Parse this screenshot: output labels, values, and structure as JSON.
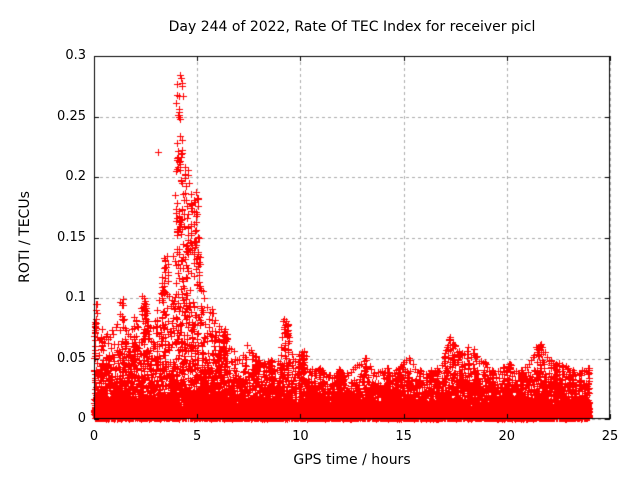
{
  "chart_data": {
    "type": "scatter",
    "title": "Day 244 of 2022, Rate Of TEC Index for receiver picl",
    "xlabel": "GPS time / hours",
    "ylabel": "ROTI / TECUs",
    "xlim": [
      0,
      25
    ],
    "ylim": [
      0,
      0.3
    ],
    "xticks": [
      0,
      5,
      10,
      15,
      20,
      25
    ],
    "xtick_labels": [
      "0",
      "5",
      "10",
      "15",
      "20",
      "25"
    ],
    "yticks": [
      0,
      0.05,
      0.1,
      0.15,
      0.2,
      0.25,
      0.3
    ],
    "ytick_labels": [
      "0",
      "0.05",
      "0.1",
      "0.15",
      "0.2",
      "0.25",
      "0.3"
    ],
    "grid": "dashed-at-major-ticks",
    "legend": "none",
    "marker": "plus",
    "colors": {
      "points": "#ff0000",
      "grid": "#ababab",
      "axis": "#000000",
      "background": "#ffffff",
      "text": "#000000"
    },
    "data_hours_range": [
      0,
      24
    ],
    "baseline_band": [
      0,
      0.02
    ],
    "envelope_max": [
      [
        0.0,
        0.095
      ],
      [
        0.2,
        0.072
      ],
      [
        0.4,
        0.075
      ],
      [
        0.6,
        0.07
      ],
      [
        0.8,
        0.08
      ],
      [
        1.0,
        0.078
      ],
      [
        1.3,
        0.101
      ],
      [
        1.5,
        0.085
      ],
      [
        1.7,
        0.075
      ],
      [
        1.9,
        0.086
      ],
      [
        2.1,
        0.08
      ],
      [
        2.35,
        0.104
      ],
      [
        2.6,
        0.088
      ],
      [
        2.8,
        0.076
      ],
      [
        3.0,
        0.09
      ],
      [
        3.2,
        0.11
      ],
      [
        3.45,
        0.135
      ],
      [
        3.6,
        0.128
      ],
      [
        3.75,
        0.1
      ],
      [
        3.9,
        0.165
      ],
      [
        4.05,
        0.283
      ],
      [
        4.2,
        0.27
      ],
      [
        4.35,
        0.19
      ],
      [
        4.45,
        0.213
      ],
      [
        4.6,
        0.165
      ],
      [
        4.8,
        0.19
      ],
      [
        4.95,
        0.185
      ],
      [
        5.1,
        0.135
      ],
      [
        5.3,
        0.108
      ],
      [
        5.5,
        0.097
      ],
      [
        5.7,
        0.093
      ],
      [
        5.9,
        0.082
      ],
      [
        6.1,
        0.076
      ],
      [
        6.35,
        0.076
      ],
      [
        6.6,
        0.062
      ],
      [
        6.9,
        0.056
      ],
      [
        7.15,
        0.05
      ],
      [
        7.45,
        0.065
      ],
      [
        7.7,
        0.056
      ],
      [
        8.0,
        0.05
      ],
      [
        8.3,
        0.046
      ],
      [
        8.6,
        0.05
      ],
      [
        8.9,
        0.046
      ],
      [
        9.1,
        0.07
      ],
      [
        9.3,
        0.083
      ],
      [
        9.55,
        0.06
      ],
      [
        9.8,
        0.052
      ],
      [
        10.1,
        0.06
      ],
      [
        10.4,
        0.046
      ],
      [
        10.7,
        0.04
      ],
      [
        11.0,
        0.043
      ],
      [
        11.4,
        0.038
      ],
      [
        11.8,
        0.042
      ],
      [
        12.2,
        0.04
      ],
      [
        12.6,
        0.044
      ],
      [
        13.0,
        0.054
      ],
      [
        13.3,
        0.048
      ],
      [
        13.7,
        0.04
      ],
      [
        14.1,
        0.043
      ],
      [
        14.5,
        0.04
      ],
      [
        14.9,
        0.046
      ],
      [
        15.2,
        0.053
      ],
      [
        15.6,
        0.045
      ],
      [
        16.0,
        0.038
      ],
      [
        16.4,
        0.041
      ],
      [
        16.7,
        0.044
      ],
      [
        17.0,
        0.056
      ],
      [
        17.2,
        0.068
      ],
      [
        17.5,
        0.061
      ],
      [
        17.8,
        0.056
      ],
      [
        18.1,
        0.061
      ],
      [
        18.4,
        0.059
      ],
      [
        18.7,
        0.051
      ],
      [
        19.0,
        0.046
      ],
      [
        19.4,
        0.04
      ],
      [
        19.8,
        0.043
      ],
      [
        20.2,
        0.046
      ],
      [
        20.6,
        0.041
      ],
      [
        21.0,
        0.046
      ],
      [
        21.4,
        0.06
      ],
      [
        21.7,
        0.063
      ],
      [
        22.0,
        0.051
      ],
      [
        22.4,
        0.046
      ],
      [
        22.8,
        0.046
      ],
      [
        23.2,
        0.041
      ],
      [
        23.6,
        0.042
      ],
      [
        24.0,
        0.043
      ]
    ],
    "clusters": [
      [
        3.95,
        4.3,
        0.15,
        0.285,
        48
      ],
      [
        4.4,
        4.6,
        0.12,
        0.215,
        18
      ],
      [
        4.68,
        5.05,
        0.135,
        0.19,
        30
      ],
      [
        3.3,
        3.65,
        0.1,
        0.138,
        16
      ],
      [
        9.15,
        9.45,
        0.068,
        0.083,
        14
      ],
      [
        2.28,
        2.48,
        0.085,
        0.104,
        9
      ],
      [
        1.25,
        1.45,
        0.08,
        0.101,
        9
      ],
      [
        0.0,
        0.15,
        0.06,
        0.096,
        8
      ],
      [
        21.45,
        21.7,
        0.05,
        0.063,
        10
      ],
      [
        17.1,
        17.3,
        0.055,
        0.068,
        10
      ]
    ],
    "outliers": [
      [
        3.08,
        0.221
      ]
    ],
    "synthesis": {
      "seed": 11,
      "n_base": 7000,
      "n_low": 4500,
      "n_columns": 110,
      "exp_scale": 0.3,
      "top_tracer_step": 0.1,
      "mid_tracer_step": 0.05
    }
  }
}
